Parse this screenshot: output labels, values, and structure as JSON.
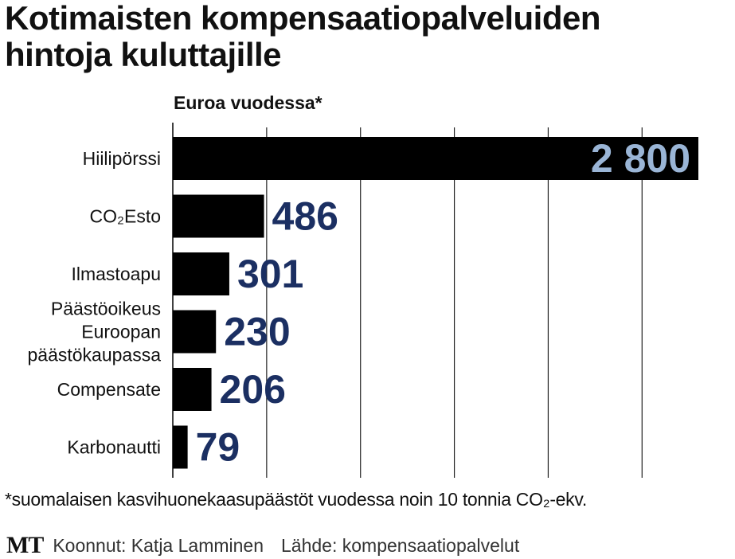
{
  "header": {
    "title_line1": "Kotimaisten kompensaatiopalveluiden",
    "title_line2": "hintoja kuluttajille",
    "unit_label": "Euroa vuodessa*"
  },
  "chart_data": {
    "type": "bar",
    "orientation": "horizontal",
    "categories": [
      [
        "Hiilipörssi"
      ],
      [
        "CO₂Esto"
      ],
      [
        "Ilmastoapu"
      ],
      [
        "Päästöoikeus",
        "Euroopan",
        "päästökaupassa"
      ],
      [
        "Compensate"
      ],
      [
        "Karbonautti"
      ]
    ],
    "values": [
      2800,
      486,
      301,
      230,
      206,
      79
    ],
    "value_labels": [
      "2 800",
      "486",
      "301",
      "230",
      "206",
      "79"
    ],
    "xlim": [
      0,
      2800
    ],
    "grid": true,
    "colors": {
      "bar": "#000000",
      "label_inside": "#9ab5d6",
      "label_outside": "#1b2f62",
      "grid": "#222222"
    }
  },
  "footnote": "*suomalaisen kasvihuonekaasupäästöt vuodessa noin 10 tonnia CO₂-ekv.",
  "footer": {
    "logo": "MT",
    "credit": "Koonnut: Katja Lamminen",
    "source": "Lähde: kompensaatiopalvelut"
  }
}
